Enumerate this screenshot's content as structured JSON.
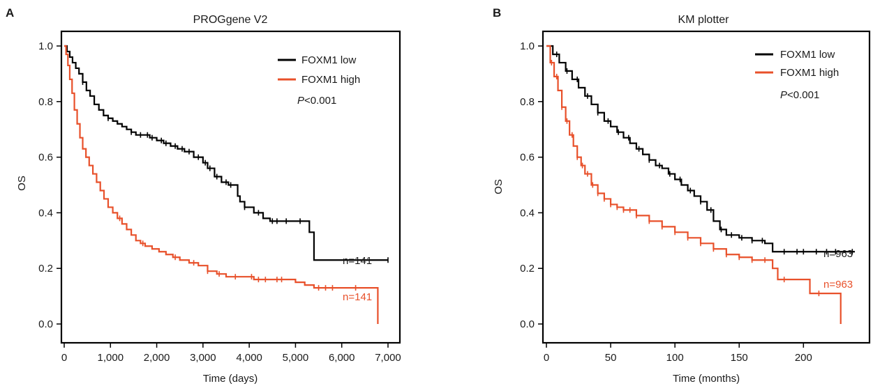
{
  "colors": {
    "low": "#000000",
    "high": "#e8502a",
    "high_b_tail": "#e02828"
  },
  "chart_data": [
    {
      "type": "line",
      "panel": "A",
      "title": "PROGgene V2",
      "xlabel": "Time (days)",
      "ylabel": "OS",
      "xlim": [
        0,
        7000
      ],
      "ylim": [
        0,
        1
      ],
      "x_ticks": [
        "0",
        "1,000",
        "2,000",
        "3,000",
        "4,000",
        "5,000",
        "6,000",
        "7,000"
      ],
      "x_tick_values": [
        0,
        1000,
        2000,
        3000,
        4000,
        5000,
        6000,
        7000
      ],
      "y_ticks": [
        "0.0",
        "0.2",
        "0.4",
        "0.6",
        "0.8",
        "1.0"
      ],
      "y_tick_values": [
        0,
        0.2,
        0.4,
        0.6,
        0.8,
        1.0
      ],
      "legend": {
        "position": "top-right",
        "entries": [
          "FOXM1 low",
          "FOXM1 high"
        ]
      },
      "p_prefix": "P",
      "p_rest": "<0.001",
      "series": [
        {
          "name": "FOXM1 low",
          "color": "#000000",
          "n_label": "n=141",
          "x": [
            0,
            60,
            120,
            180,
            250,
            320,
            400,
            480,
            560,
            650,
            750,
            850,
            950,
            1050,
            1150,
            1250,
            1350,
            1450,
            1550,
            1700,
            1850,
            2000,
            2150,
            2300,
            2450,
            2600,
            2800,
            3000,
            3100,
            3250,
            3400,
            3550,
            3650,
            3750,
            3800,
            3900,
            4100,
            4300,
            4450,
            4700,
            5000,
            5250,
            5300,
            5400,
            7000
          ],
          "y": [
            1.0,
            0.98,
            0.96,
            0.94,
            0.92,
            0.9,
            0.87,
            0.84,
            0.82,
            0.79,
            0.77,
            0.75,
            0.74,
            0.73,
            0.72,
            0.71,
            0.7,
            0.69,
            0.68,
            0.68,
            0.67,
            0.66,
            0.65,
            0.64,
            0.63,
            0.62,
            0.6,
            0.58,
            0.56,
            0.53,
            0.51,
            0.5,
            0.5,
            0.46,
            0.44,
            0.42,
            0.4,
            0.38,
            0.37,
            0.37,
            0.37,
            0.37,
            0.33,
            0.23,
            0.23
          ],
          "censor_x": [
            400,
            950,
            1450,
            1650,
            1800,
            1900,
            2100,
            2200,
            2400,
            2550,
            2700,
            2900,
            3050,
            3150,
            3300,
            3500,
            3600,
            3900,
            4200,
            4500,
            4600,
            4800,
            5100,
            7000
          ]
        },
        {
          "name": "FOXM1 high",
          "color": "#e8502a",
          "n_label": "n=141",
          "x": [
            0,
            40,
            80,
            120,
            170,
            220,
            280,
            340,
            400,
            470,
            540,
            620,
            700,
            780,
            860,
            950,
            1050,
            1150,
            1250,
            1350,
            1450,
            1550,
            1650,
            1750,
            1900,
            2050,
            2200,
            2350,
            2500,
            2700,
            2900,
            3100,
            3300,
            3500,
            3700,
            3900,
            4100,
            4500,
            5000,
            5200,
            5400,
            6000,
            6500,
            6750,
            6780
          ],
          "y": [
            1.0,
            0.97,
            0.93,
            0.88,
            0.83,
            0.77,
            0.72,
            0.67,
            0.63,
            0.6,
            0.57,
            0.54,
            0.51,
            0.48,
            0.45,
            0.42,
            0.4,
            0.38,
            0.36,
            0.34,
            0.32,
            0.3,
            0.29,
            0.28,
            0.27,
            0.26,
            0.25,
            0.24,
            0.23,
            0.22,
            0.21,
            0.19,
            0.18,
            0.17,
            0.17,
            0.17,
            0.16,
            0.16,
            0.15,
            0.14,
            0.13,
            0.13,
            0.13,
            0.13,
            0.0
          ],
          "censor_x": [
            1200,
            1700,
            2400,
            2800,
            3100,
            3350,
            3700,
            4050,
            4200,
            4350,
            4600,
            4700,
            5500,
            5650,
            5800,
            6300
          ]
        }
      ]
    },
    {
      "type": "line",
      "panel": "B",
      "title": "KM plotter",
      "xlabel": "Time (months)",
      "ylabel": "OS",
      "xlim": [
        0,
        240
      ],
      "ylim": [
        0,
        1
      ],
      "x_ticks": [
        "0",
        "50",
        "100",
        "150",
        "200"
      ],
      "x_tick_values": [
        0,
        50,
        100,
        150,
        200
      ],
      "y_ticks": [
        "0.0",
        "0.2",
        "0.4",
        "0.6",
        "0.8",
        "1.0"
      ],
      "y_tick_values": [
        0,
        0.2,
        0.4,
        0.6,
        0.8,
        1.0
      ],
      "legend": {
        "position": "top-right",
        "entries": [
          "FOXM1 low",
          "FOXM1 high"
        ]
      },
      "p_prefix": "P",
      "p_rest": "<0.001",
      "series": [
        {
          "name": "FOXM1 low",
          "color": "#000000",
          "n_label": "n=963",
          "x": [
            0,
            5,
            10,
            15,
            20,
            25,
            30,
            35,
            40,
            45,
            50,
            55,
            60,
            65,
            70,
            75,
            80,
            85,
            90,
            95,
            100,
            105,
            110,
            115,
            120,
            125,
            130,
            135,
            140,
            145,
            150,
            160,
            170,
            176,
            180,
            240
          ],
          "y": [
            1.0,
            0.97,
            0.94,
            0.91,
            0.88,
            0.85,
            0.82,
            0.79,
            0.76,
            0.73,
            0.71,
            0.69,
            0.67,
            0.65,
            0.63,
            0.61,
            0.59,
            0.57,
            0.56,
            0.54,
            0.52,
            0.5,
            0.48,
            0.46,
            0.44,
            0.41,
            0.37,
            0.34,
            0.32,
            0.32,
            0.31,
            0.3,
            0.29,
            0.26,
            0.26,
            0.26
          ],
          "censor_x": [
            8,
            16,
            24,
            32,
            40,
            48,
            56,
            64,
            72,
            80,
            88,
            96,
            104,
            112,
            120,
            128,
            136,
            144,
            152,
            160,
            168,
            185,
            195,
            200,
            210,
            218,
            225,
            238
          ]
        },
        {
          "name": "FOXM1 high",
          "color": "#e8502a",
          "n_label": "n=963",
          "x": [
            0,
            3,
            6,
            9,
            12,
            15,
            18,
            21,
            24,
            27,
            30,
            35,
            40,
            45,
            50,
            55,
            60,
            70,
            80,
            90,
            100,
            110,
            120,
            130,
            140,
            150,
            160,
            170,
            176,
            180,
            195,
            205,
            215,
            228,
            229
          ],
          "y": [
            1.0,
            0.94,
            0.89,
            0.84,
            0.78,
            0.73,
            0.68,
            0.64,
            0.6,
            0.57,
            0.54,
            0.5,
            0.47,
            0.45,
            0.43,
            0.42,
            0.41,
            0.39,
            0.37,
            0.35,
            0.33,
            0.31,
            0.29,
            0.27,
            0.25,
            0.24,
            0.23,
            0.23,
            0.2,
            0.16,
            0.16,
            0.11,
            0.11,
            0.11,
            0.0
          ],
          "censor_x": [
            4,
            8,
            12,
            16,
            20,
            24,
            28,
            32,
            36,
            40,
            45,
            50,
            55,
            60,
            65,
            70,
            80,
            90,
            100,
            110,
            120,
            130,
            140,
            150,
            160,
            170,
            185,
            212
          ]
        }
      ]
    }
  ]
}
